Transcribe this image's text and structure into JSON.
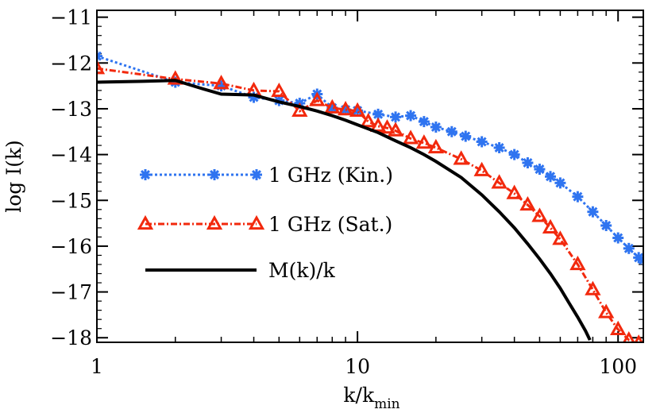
{
  "chart_data": {
    "type": "line",
    "xlabel": "k/k",
    "xlabel_sub": "min",
    "ylabel": "log I(k)",
    "x_scale": "log",
    "xlim": [
      1,
      125
    ],
    "ylim": [
      -18.1,
      -10.85
    ],
    "x_ticks": [
      1,
      10,
      100
    ],
    "x_tick_labels": [
      "1",
      "10",
      "100"
    ],
    "y_ticks": [
      -11,
      -12,
      -13,
      -14,
      -15,
      -16,
      -17,
      -18
    ],
    "y_tick_labels": [
      "−11",
      "−12",
      "−13",
      "−14",
      "−15",
      "−16",
      "−17",
      "−18"
    ],
    "legend_position": "left-middle",
    "series": [
      {
        "name": "1 GHz (Kin.)",
        "color": "#2f74f0",
        "marker": "asterisk",
        "line_style": "dotted",
        "x": [
          1,
          2,
          3,
          4,
          5,
          6,
          7,
          8,
          9,
          10,
          12,
          14,
          16,
          18,
          20,
          23,
          26,
          30,
          35,
          40,
          45,
          50,
          55,
          60,
          70,
          80,
          90,
          100,
          110,
          120,
          125
        ],
        "y": [
          -11.85,
          -12.42,
          -12.5,
          -12.75,
          -12.82,
          -12.88,
          -12.68,
          -12.98,
          -13.02,
          -13.04,
          -13.12,
          -13.18,
          -13.15,
          -13.28,
          -13.4,
          -13.5,
          -13.6,
          -13.72,
          -13.85,
          -14.0,
          -14.18,
          -14.32,
          -14.48,
          -14.62,
          -14.92,
          -15.25,
          -15.55,
          -15.82,
          -16.05,
          -16.25,
          -16.3
        ]
      },
      {
        "name": "1 GHz (Sat.)",
        "color": "#f2290d",
        "marker": "triangle",
        "line_style": "dash-dot",
        "x": [
          1,
          2,
          3,
          4,
          5,
          6,
          7,
          8,
          9,
          10,
          11,
          12,
          13,
          14,
          16,
          18,
          20,
          25,
          30,
          35,
          40,
          45,
          50,
          55,
          60,
          70,
          80,
          90,
          100,
          110,
          120
        ],
        "y": [
          -12.12,
          -12.35,
          -12.45,
          -12.6,
          -12.62,
          -13.05,
          -12.82,
          -12.98,
          -13.02,
          -13.05,
          -13.28,
          -13.38,
          -13.42,
          -13.48,
          -13.65,
          -13.75,
          -13.85,
          -14.1,
          -14.35,
          -14.62,
          -14.85,
          -15.1,
          -15.35,
          -15.6,
          -15.85,
          -16.4,
          -16.95,
          -17.45,
          -17.82,
          -18.05,
          -18.12
        ]
      },
      {
        "name": "M(k)/k",
        "color": "#000000",
        "marker": "none",
        "line_style": "solid",
        "x": [
          1,
          1.5,
          2,
          2.5,
          3,
          4,
          5,
          6,
          7,
          8,
          9,
          10,
          12,
          14,
          16,
          18,
          20,
          25,
          30,
          35,
          40,
          45,
          50,
          55,
          60,
          65,
          70,
          75,
          78
        ],
        "y": [
          -12.42,
          -12.4,
          -12.38,
          -12.55,
          -12.68,
          -12.7,
          -12.85,
          -12.95,
          -13.05,
          -13.15,
          -13.25,
          -13.35,
          -13.52,
          -13.7,
          -13.85,
          -14.0,
          -14.15,
          -14.5,
          -14.88,
          -15.25,
          -15.6,
          -15.95,
          -16.28,
          -16.6,
          -16.92,
          -17.25,
          -17.55,
          -17.85,
          -18.05
        ]
      }
    ]
  }
}
